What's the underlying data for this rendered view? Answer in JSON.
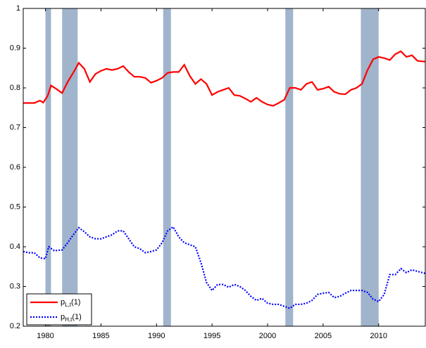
{
  "chart_data": {
    "type": "line",
    "xlim": [
      1978,
      2014.2
    ],
    "xticks": [
      1980,
      1985,
      1990,
      1995,
      2000,
      2005,
      2010
    ],
    "ylim": [
      0.2,
      1
    ],
    "yticks": [
      0.2,
      0.3,
      0.4,
      0.5,
      0.6,
      0.7,
      0.8,
      0.9,
      1
    ],
    "grid": false,
    "legend": "lower left",
    "shaded_regions": [
      [
        1980.0,
        1980.5
      ],
      [
        1981.5,
        1982.9
      ],
      [
        1990.6,
        1991.3
      ],
      [
        2001.6,
        2002.3
      ],
      [
        2008.4,
        2010.0
      ]
    ],
    "shade_color": "#a0b4cc",
    "series": [
      {
        "name": "p",
        "subscript": "L,t",
        "suffix": "(1)",
        "color": "#ff0000",
        "dash": "solid",
        "x": [
          1978,
          1979,
          1979.5,
          1979.8,
          1980.2,
          1980.5,
          1981,
          1981.5,
          1982,
          1982.5,
          1983,
          1983.5,
          1984,
          1984.5,
          1985,
          1985.5,
          1986,
          1986.5,
          1987,
          1987.5,
          1988,
          1988.5,
          1989,
          1989.5,
          1990,
          1990.5,
          1991,
          1991.5,
          1992,
          1992.5,
          1993,
          1993.5,
          1994,
          1994.5,
          1995,
          1995.5,
          1996,
          1996.5,
          1997,
          1997.5,
          1998,
          1998.5,
          1999,
          1999.5,
          2000,
          2000.5,
          2001,
          2001.5,
          2002,
          2002.5,
          2003,
          2003.5,
          2004,
          2004.5,
          2005,
          2005.5,
          2006,
          2006.5,
          2007,
          2007.5,
          2008,
          2008.5,
          2009,
          2009.5,
          2010,
          2010.5,
          2011,
          2011.5,
          2012,
          2012.5,
          2013,
          2013.5,
          2014.2
        ],
        "values": [
          0.762,
          0.762,
          0.768,
          0.763,
          0.78,
          0.806,
          0.797,
          0.787,
          0.815,
          0.838,
          0.863,
          0.848,
          0.815,
          0.835,
          0.843,
          0.848,
          0.845,
          0.848,
          0.855,
          0.84,
          0.828,
          0.828,
          0.825,
          0.813,
          0.818,
          0.825,
          0.838,
          0.84,
          0.84,
          0.858,
          0.83,
          0.81,
          0.822,
          0.81,
          0.782,
          0.79,
          0.795,
          0.8,
          0.782,
          0.78,
          0.773,
          0.765,
          0.775,
          0.765,
          0.758,
          0.755,
          0.762,
          0.77,
          0.8,
          0.8,
          0.795,
          0.81,
          0.815,
          0.795,
          0.798,
          0.803,
          0.79,
          0.785,
          0.784,
          0.795,
          0.8,
          0.81,
          0.845,
          0.872,
          0.878,
          0.875,
          0.87,
          0.885,
          0.892,
          0.878,
          0.882,
          0.868,
          0.866
        ]
      },
      {
        "name": "p",
        "subscript": "H,t",
        "suffix": "(1)",
        "color": "#0000ff",
        "dash": "dotted",
        "x": [
          1978,
          1978.5,
          1979,
          1979.5,
          1980,
          1980.3,
          1980.8,
          1981.5,
          1982,
          1982.5,
          1983,
          1983.5,
          1984,
          1984.5,
          1985,
          1985.5,
          1986,
          1986.5,
          1987,
          1987.5,
          1988,
          1988.5,
          1989,
          1989.5,
          1990,
          1990.5,
          1991,
          1991.5,
          1992,
          1992.5,
          1993,
          1993.5,
          1994,
          1994.5,
          1995,
          1995.5,
          1996,
          1996.5,
          1997,
          1997.5,
          1998,
          1998.5,
          1999,
          1999.5,
          2000,
          2000.5,
          2001,
          2001.5,
          2002,
          2002.5,
          2003,
          2003.5,
          2004,
          2004.5,
          2005,
          2005.5,
          2006,
          2006.5,
          2007,
          2007.5,
          2008,
          2008.5,
          2009,
          2009.5,
          2010,
          2010.5,
          2011,
          2011.5,
          2012,
          2012.5,
          2013,
          2013.5,
          2014.2
        ],
        "values": [
          0.388,
          0.385,
          0.385,
          0.372,
          0.37,
          0.4,
          0.39,
          0.392,
          0.41,
          0.43,
          0.448,
          0.438,
          0.425,
          0.42,
          0.42,
          0.425,
          0.43,
          0.44,
          0.44,
          0.42,
          0.4,
          0.395,
          0.385,
          0.388,
          0.392,
          0.41,
          0.44,
          0.45,
          0.425,
          0.41,
          0.405,
          0.4,
          0.36,
          0.31,
          0.29,
          0.305,
          0.305,
          0.298,
          0.305,
          0.3,
          0.29,
          0.275,
          0.265,
          0.27,
          0.258,
          0.255,
          0.255,
          0.25,
          0.245,
          0.255,
          0.255,
          0.258,
          0.265,
          0.28,
          0.283,
          0.285,
          0.272,
          0.275,
          0.283,
          0.29,
          0.29,
          0.29,
          0.285,
          0.268,
          0.262,
          0.28,
          0.33,
          0.33,
          0.345,
          0.335,
          0.342,
          0.338,
          0.333
        ]
      }
    ]
  }
}
